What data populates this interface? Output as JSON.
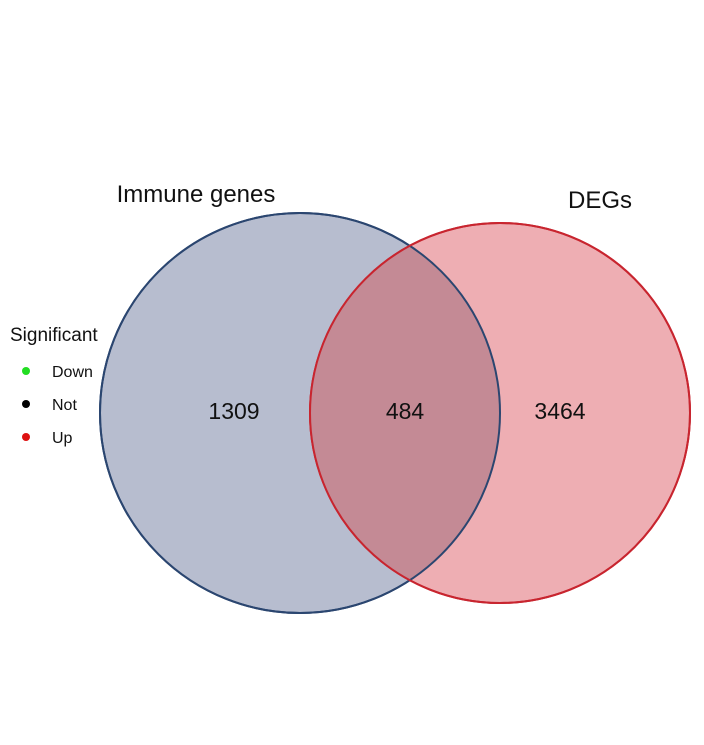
{
  "venn": {
    "sets": [
      {
        "label": "Immune genes",
        "fill": "#b7bdcf",
        "stroke": "#2b4670"
      },
      {
        "label": "DEGs",
        "fill": "#eeaeb3",
        "stroke": "#c8252f"
      }
    ],
    "overlap_fill": "#c48a95",
    "counts": {
      "only_immune": "1309",
      "intersection": "484",
      "only_degs": "3464"
    }
  },
  "legend": {
    "title": "Significant",
    "items": [
      {
        "label": "Down",
        "color": "#22dd22"
      },
      {
        "label": "Not",
        "color": "#000000"
      },
      {
        "label": "Up",
        "color": "#dd1111"
      }
    ]
  }
}
